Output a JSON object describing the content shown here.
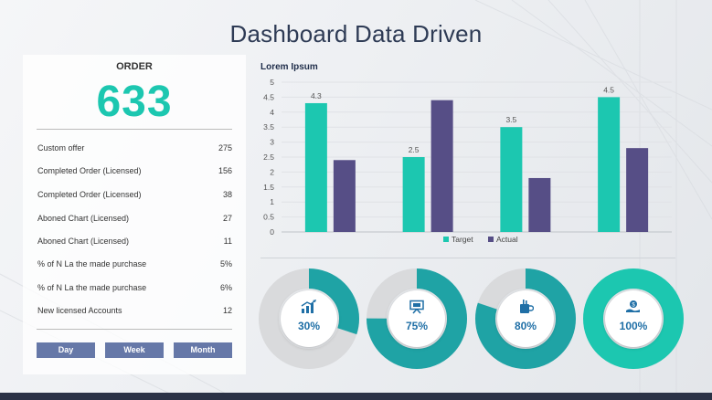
{
  "title": "Dashboard Data Driven",
  "order": {
    "heading": "ORDER",
    "total": "633",
    "rows": [
      {
        "label": "Custom offer",
        "value": "275"
      },
      {
        "label": "Completed Order (Licensed)",
        "value": "156"
      },
      {
        "label": "Completed Order (Licensed)",
        "value": "38"
      },
      {
        "label": "Aboned Chart (Licensed)",
        "value": "27"
      },
      {
        "label": "Aboned Chart (Licensed)",
        "value": "11"
      },
      {
        "label": "% of N La the made purchase",
        "value": "5%"
      },
      {
        "label": "% of N La the made purchase",
        "value": "6%"
      },
      {
        "label": "New licensed Accounts",
        "value": "12"
      }
    ],
    "tabs": [
      "Day",
      "Week",
      "Month"
    ]
  },
  "colors": {
    "target": "#1cc7b0",
    "actual": "#564e86",
    "donut_fill": "#1fa3a5",
    "donut_full": "#1cc7b0",
    "donut_track": "#d9dadc",
    "accent_tab": "#6678a8",
    "title": "#2e3b55"
  },
  "chart_data": {
    "type": "bar",
    "title": "Lorem Ipsum",
    "categories": [
      "",
      "",
      "",
      ""
    ],
    "series": [
      {
        "name": "Target",
        "values": [
          4.3,
          2.5,
          3.5,
          4.5
        ]
      },
      {
        "name": "Actual",
        "values": [
          2.4,
          4.4,
          1.8,
          2.8
        ]
      }
    ],
    "data_labels": [
      "4.3",
      "2.5",
      "3.5",
      "4.5"
    ],
    "yticks": [
      "0",
      "0.5",
      "1",
      "1.5",
      "2",
      "2.5",
      "3",
      "3.5",
      "4",
      "4.5",
      "5"
    ],
    "ylim": [
      0,
      5
    ],
    "grid": true,
    "legend": "bottom"
  },
  "donuts": [
    {
      "pct": "30%",
      "value": 0.3,
      "icon": "growth-chart-icon"
    },
    {
      "pct": "75%",
      "value": 0.75,
      "icon": "presentation-board-icon"
    },
    {
      "pct": "80%",
      "value": 0.8,
      "icon": "coffee-cup-icon"
    },
    {
      "pct": "100%",
      "value": 1.0,
      "icon": "money-hand-icon"
    }
  ]
}
